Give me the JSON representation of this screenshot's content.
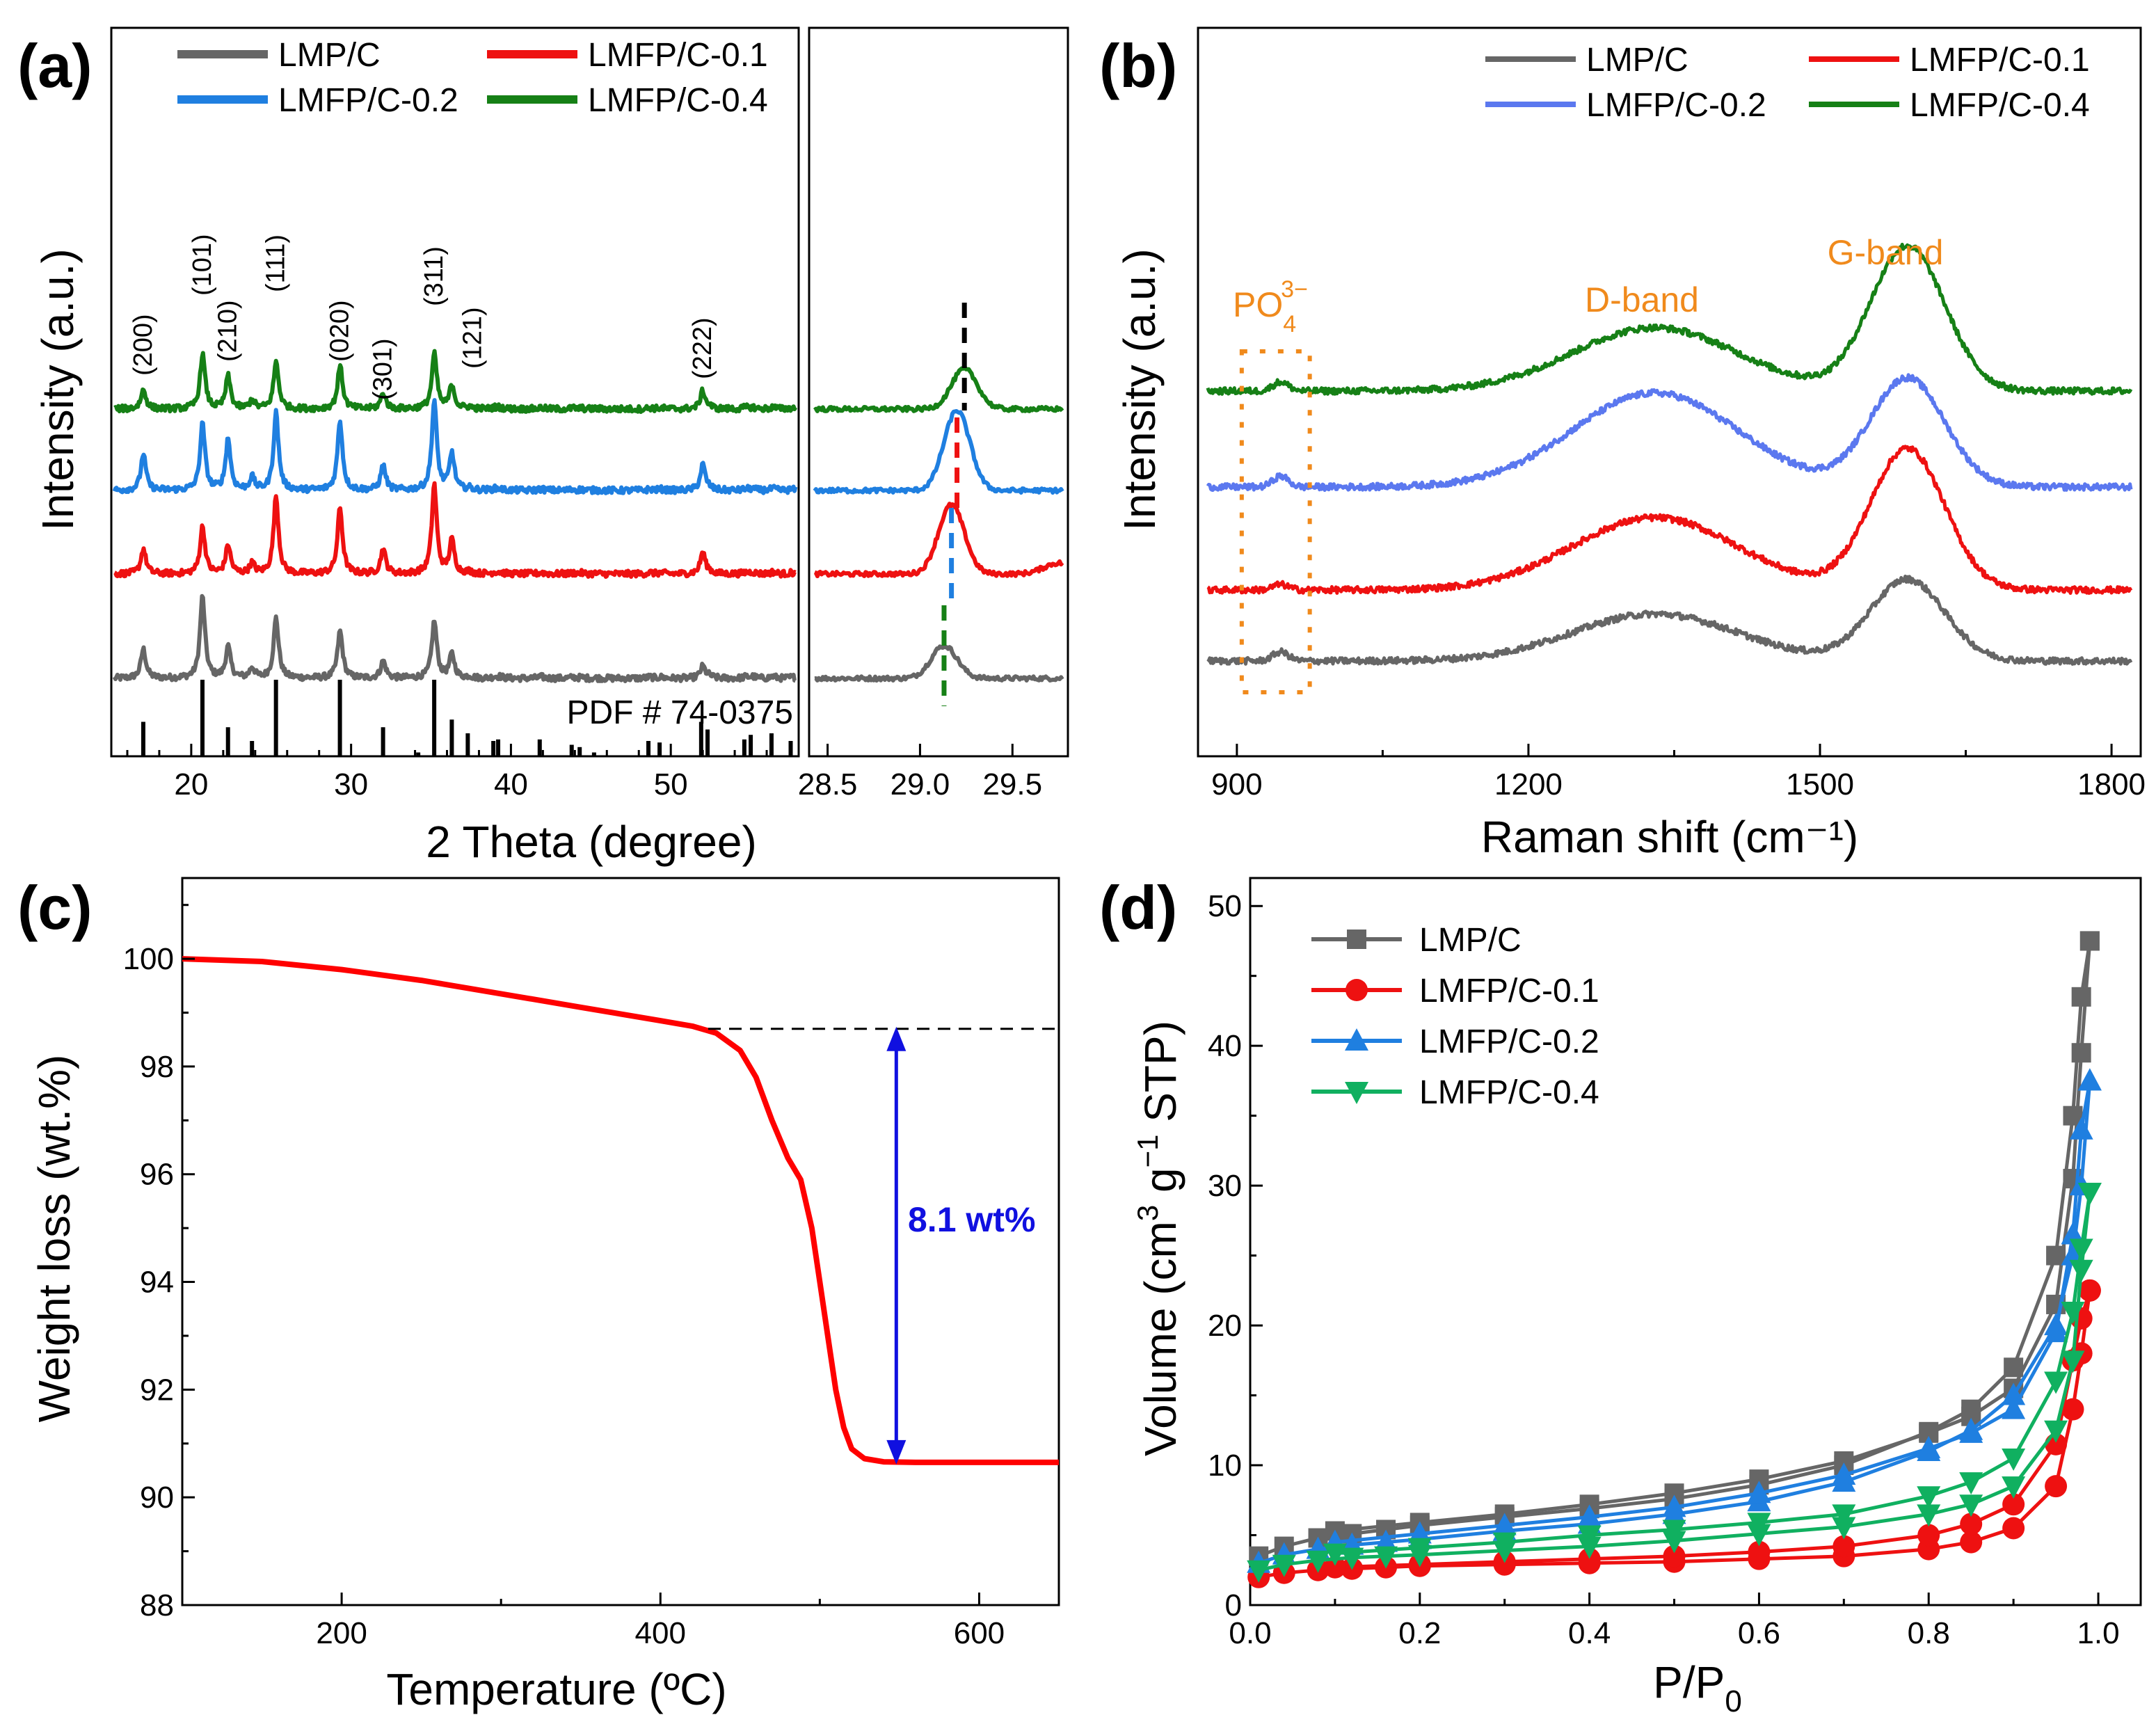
{
  "colors": {
    "lmp": "#666666",
    "lmfp01": "#ee1111",
    "lmfp02_a": "#1f7fe0",
    "lmfp02_b": "#5b78ef",
    "lmfp04": "#168016",
    "lmfp04_d": "#10b060",
    "annotation": "#f08a1c",
    "blue_arrow": "#1010e0",
    "tga": "#ff0000"
  },
  "chart_data": [
    {
      "id": "a",
      "panel": "(a)",
      "type": "line",
      "xlabel": "2 Theta (degree)",
      "ylabel": "Intensity (a.u.)",
      "xlim_main": [
        15,
        58
      ],
      "xlim_inset": [
        28.4,
        29.8
      ],
      "xticks_main": [
        "20",
        "30",
        "40",
        "50"
      ],
      "xticks_inset": [
        "28.5",
        "29.0",
        "29.5"
      ],
      "legend": [
        "LMP/C",
        "LMFP/C-0.1",
        "LMFP/C-0.2",
        "LMFP/C-0.4"
      ],
      "hkl_labels": [
        "(200)",
        "(101)",
        "(210)",
        "(111)",
        "(020)",
        "(301)",
        "(311)",
        "(121)",
        "(222)"
      ],
      "hkl_positions": [
        17.0,
        20.7,
        22.3,
        25.3,
        29.3,
        32.0,
        35.2,
        36.3,
        52.0
      ],
      "reference_label": "PDF # 74-0375",
      "reference_peaks": [
        {
          "x": 17.0,
          "i": 0.45
        },
        {
          "x": 20.7,
          "i": 1.0
        },
        {
          "x": 22.3,
          "i": 0.38
        },
        {
          "x": 23.8,
          "i": 0.2
        },
        {
          "x": 25.3,
          "i": 1.0
        },
        {
          "x": 29.3,
          "i": 1.0
        },
        {
          "x": 32.0,
          "i": 0.38
        },
        {
          "x": 34.2,
          "i": 0.05
        },
        {
          "x": 35.2,
          "i": 1.0
        },
        {
          "x": 36.3,
          "i": 0.48
        },
        {
          "x": 37.3,
          "i": 0.3
        },
        {
          "x": 38.9,
          "i": 0.2
        },
        {
          "x": 39.2,
          "i": 0.22
        },
        {
          "x": 41.8,
          "i": 0.22
        },
        {
          "x": 43.8,
          "i": 0.15
        },
        {
          "x": 44.3,
          "i": 0.12
        },
        {
          "x": 45.2,
          "i": 0.05
        },
        {
          "x": 48.6,
          "i": 0.2
        },
        {
          "x": 49.3,
          "i": 0.18
        },
        {
          "x": 51.9,
          "i": 0.45
        },
        {
          "x": 52.3,
          "i": 0.35
        },
        {
          "x": 54.6,
          "i": 0.22
        },
        {
          "x": 55.0,
          "i": 0.28
        },
        {
          "x": 56.3,
          "i": 0.3
        },
        {
          "x": 57.5,
          "i": 0.2
        }
      ],
      "series": [
        {
          "name": "LMP/C",
          "offset": 0,
          "peaks": [
            [
              17.0,
              0.35
            ],
            [
              20.7,
              1.0
            ],
            [
              22.3,
              0.38
            ],
            [
              23.8,
              0.12
            ],
            [
              25.3,
              0.72
            ],
            [
              29.3,
              0.55
            ],
            [
              32.0,
              0.2
            ],
            [
              35.2,
              0.68
            ],
            [
              36.3,
              0.28
            ],
            [
              52.0,
              0.12
            ]
          ],
          "inset_peak": 29.13,
          "inset_height": 0.45
        },
        {
          "name": "LMFP/C-0.1",
          "offset": 1,
          "peaks": [
            [
              17.0,
              0.3
            ],
            [
              20.7,
              0.55
            ],
            [
              22.3,
              0.35
            ],
            [
              23.8,
              0.12
            ],
            [
              25.3,
              0.95
            ],
            [
              29.3,
              0.8
            ],
            [
              32.0,
              0.3
            ],
            [
              35.2,
              1.1
            ],
            [
              36.3,
              0.4
            ],
            [
              52.0,
              0.25
            ]
          ],
          "inset_peak": 29.17,
          "inset_height": 0.95
        },
        {
          "name": "LMFP/C-0.2",
          "offset": 2,
          "peaks": [
            [
              17.0,
              0.45
            ],
            [
              20.7,
              0.8
            ],
            [
              22.3,
              0.65
            ],
            [
              23.8,
              0.15
            ],
            [
              25.3,
              0.95
            ],
            [
              29.3,
              0.85
            ],
            [
              32.0,
              0.3
            ],
            [
              35.2,
              1.1
            ],
            [
              36.3,
              0.45
            ],
            [
              52.0,
              0.3
            ]
          ],
          "inset_peak": 29.2,
          "inset_height": 1.1
        },
        {
          "name": "LMFP/C-0.4",
          "offset": 3,
          "peaks": [
            [
              17.0,
              0.22
            ],
            [
              20.7,
              0.65
            ],
            [
              22.3,
              0.4
            ],
            [
              23.8,
              0.1
            ],
            [
              25.3,
              0.55
            ],
            [
              29.3,
              0.5
            ],
            [
              32.0,
              0.18
            ],
            [
              35.2,
              0.65
            ],
            [
              36.3,
              0.28
            ],
            [
              52.0,
              0.2
            ]
          ],
          "inset_peak": 29.24,
          "inset_height": 0.55
        }
      ]
    },
    {
      "id": "b",
      "panel": "(b)",
      "type": "line",
      "xlabel": "Raman shift (cm⁻¹)",
      "ylabel": "Intensity (a.u.)",
      "xlim": [
        860,
        1830
      ],
      "xticks": [
        "900",
        "1200",
        "1500",
        "1800"
      ],
      "legend": [
        "LMP/C",
        "LMFP/C-0.1",
        "LMFP/C-0.2",
        "LMFP/C-0.4"
      ],
      "annotations": {
        "po4": "PO",
        "po4_sub": "4",
        "po4_sup": "3−",
        "d_band": "D-band",
        "g_band": "G-band"
      },
      "bands": {
        "po4": 945,
        "d_band": 1330,
        "g_band": 1590
      },
      "series": [
        {
          "name": "LMP/C",
          "baseline": 0,
          "d_height": 0.26,
          "g_height": 0.45,
          "po4_height": 0.05
        },
        {
          "name": "LMFP/C-0.1",
          "baseline": 1,
          "d_height": 0.4,
          "g_height": 0.78,
          "po4_height": 0.03
        },
        {
          "name": "LMFP/C-0.2",
          "baseline": 2,
          "d_height": 0.52,
          "g_height": 0.6,
          "po4_height": 0.06
        },
        {
          "name": "LMFP/C-0.4",
          "baseline": 3,
          "d_height": 0.35,
          "g_height": 0.8,
          "po4_height": 0.05
        }
      ]
    },
    {
      "id": "c",
      "panel": "(c)",
      "type": "line",
      "xlabel": "Temperature (ºC)",
      "ylabel": "Weight loss (wt.%)",
      "xlim": [
        100,
        650
      ],
      "ylim": [
        88,
        101.5
      ],
      "xticks": [
        "200",
        "400",
        "600"
      ],
      "yticks": [
        "88",
        "90",
        "92",
        "94",
        "96",
        "98",
        "100"
      ],
      "annotation": "8.1 wt%",
      "dashed_level": 98.7,
      "final_level": 90.65,
      "x": [
        100,
        150,
        200,
        250,
        300,
        350,
        400,
        420,
        435,
        450,
        460,
        470,
        480,
        488,
        495,
        500,
        505,
        510,
        515,
        520,
        528,
        540,
        560,
        600,
        650
      ],
      "y": [
        100.0,
        99.95,
        99.8,
        99.6,
        99.35,
        99.1,
        98.85,
        98.75,
        98.62,
        98.3,
        97.8,
        97.0,
        96.3,
        95.9,
        95.0,
        94.0,
        93.0,
        92.0,
        91.3,
        90.9,
        90.72,
        90.66,
        90.65,
        90.65,
        90.65
      ]
    },
    {
      "id": "d",
      "panel": "(d)",
      "type": "line",
      "xlabel": "P/P0",
      "xlabel_main": "P/P",
      "xlabel_sub": "0",
      "ylabel": "Volume (cm³ g⁻¹ STP)",
      "ylabel_a": "Volume (cm",
      "ylabel_sup1": "3",
      "ylabel_b": " g",
      "ylabel_sup2": "−1",
      "ylabel_c": " STP)",
      "xlim": [
        0,
        1.05
      ],
      "ylim": [
        0,
        52
      ],
      "xticks": [
        "0.0",
        "0.2",
        "0.4",
        "0.6",
        "0.8",
        "1.0"
      ],
      "yticks": [
        "0",
        "10",
        "20",
        "30",
        "40",
        "50"
      ],
      "legend": [
        "LMP/C",
        "LMFP/C-0.1",
        "LMFP/C-0.2",
        "LMFP/C-0.4"
      ],
      "series": [
        {
          "name": "LMP/C",
          "marker": "square",
          "adsorption": {
            "x": [
              0.01,
              0.04,
              0.08,
              0.12,
              0.16,
              0.2,
              0.3,
              0.4,
              0.5,
              0.6,
              0.7,
              0.8,
              0.85,
              0.9,
              0.95,
              0.97,
              0.98,
              0.99
            ],
            "y": [
              3.5,
              4.2,
              4.8,
              5.1,
              5.4,
              5.7,
              6.3,
              6.9,
              7.6,
              8.6,
              10.0,
              12.4,
              14.0,
              17.0,
              25.0,
              35.0,
              43.5,
              47.5
            ]
          },
          "desorption": {
            "x": [
              0.99,
              0.98,
              0.97,
              0.95,
              0.9,
              0.85,
              0.8,
              0.7,
              0.6,
              0.5,
              0.4,
              0.3,
              0.2,
              0.1
            ],
            "y": [
              47.5,
              39.5,
              30.5,
              21.5,
              15.5,
              13.5,
              12.3,
              10.3,
              9.0,
              8.0,
              7.2,
              6.5,
              5.9,
              5.3
            ]
          }
        },
        {
          "name": "LMFP/C-0.1",
          "marker": "circle",
          "adsorption": {
            "x": [
              0.01,
              0.04,
              0.08,
              0.12,
              0.16,
              0.2,
              0.3,
              0.4,
              0.5,
              0.6,
              0.7,
              0.8,
              0.85,
              0.9,
              0.95,
              0.97,
              0.98,
              0.99
            ],
            "y": [
              2.0,
              2.3,
              2.5,
              2.6,
              2.7,
              2.8,
              2.9,
              3.0,
              3.1,
              3.3,
              3.5,
              4.0,
              4.5,
              5.5,
              8.5,
              14.0,
              18.0,
              22.5
            ]
          },
          "desorption": {
            "x": [
              0.99,
              0.98,
              0.97,
              0.95,
              0.9,
              0.85,
              0.8,
              0.7,
              0.6,
              0.5,
              0.4,
              0.3,
              0.2,
              0.1
            ],
            "y": [
              22.5,
              20.5,
              17.5,
              11.5,
              7.2,
              5.8,
              5.0,
              4.2,
              3.8,
              3.5,
              3.3,
              3.1,
              2.9,
              2.7
            ]
          }
        },
        {
          "name": "LMFP/C-0.2",
          "marker": "triangle-up",
          "adsorption": {
            "x": [
              0.01,
              0.04,
              0.08,
              0.12,
              0.16,
              0.2,
              0.3,
              0.4,
              0.5,
              0.6,
              0.7,
              0.8,
              0.85,
              0.9,
              0.95,
              0.97,
              0.98,
              0.99
            ],
            "y": [
              3.0,
              3.6,
              4.0,
              4.3,
              4.5,
              4.7,
              5.3,
              5.8,
              6.5,
              7.4,
              8.8,
              11.0,
              12.5,
              15.0,
              20.0,
              25.0,
              30.0,
              37.5
            ]
          },
          "desorption": {
            "x": [
              0.99,
              0.98,
              0.97,
              0.95,
              0.9,
              0.85,
              0.8,
              0.7,
              0.6,
              0.5,
              0.4,
              0.3,
              0.2,
              0.1
            ],
            "y": [
              37.5,
              34.0,
              26.5,
              19.5,
              14.0,
              12.3,
              11.2,
              9.3,
              8.0,
              7.0,
              6.3,
              5.7,
              5.1,
              4.5
            ]
          }
        },
        {
          "name": "LMFP/C-0.4",
          "marker": "triangle-down",
          "adsorption": {
            "x": [
              0.01,
              0.04,
              0.08,
              0.12,
              0.16,
              0.2,
              0.3,
              0.4,
              0.5,
              0.6,
              0.7,
              0.8,
              0.85,
              0.9,
              0.95,
              0.97,
              0.98,
              0.99
            ],
            "y": [
              2.5,
              2.9,
              3.2,
              3.4,
              3.5,
              3.6,
              3.9,
              4.2,
              4.6,
              5.1,
              5.6,
              6.5,
              7.2,
              8.5,
              12.5,
              17.5,
              24.0,
              29.5
            ]
          },
          "desorption": {
            "x": [
              0.99,
              0.98,
              0.97,
              0.95,
              0.9,
              0.85,
              0.8,
              0.7,
              0.6,
              0.5,
              0.4,
              0.3,
              0.2,
              0.1
            ],
            "y": [
              29.5,
              25.5,
              21.0,
              16.0,
              10.5,
              8.8,
              7.8,
              6.5,
              5.9,
              5.4,
              5.0,
              4.5,
              4.1,
              3.7
            ]
          }
        }
      ]
    }
  ]
}
